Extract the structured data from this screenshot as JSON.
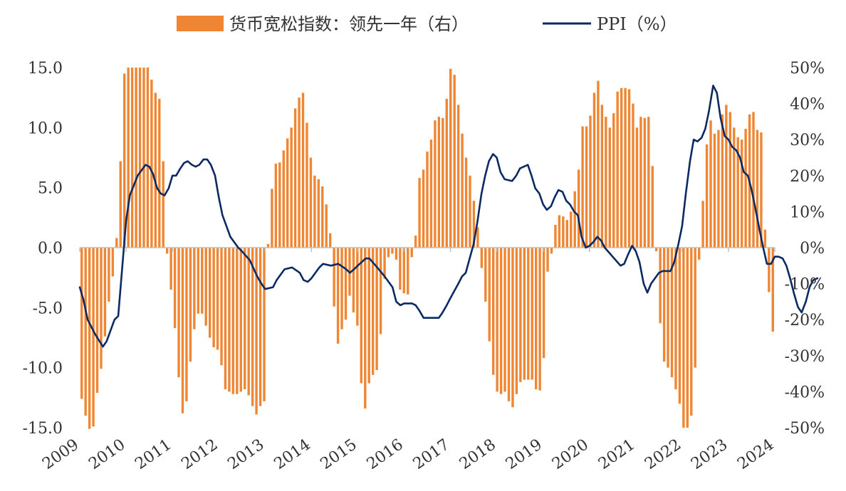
{
  "legend": {
    "bar_label": "货币宽松指数：领先一年（右）",
    "line_label": "PPI（%）"
  },
  "colors": {
    "bar": "#EE8633",
    "line": "#0B2A63",
    "axis": "#BFBFBF"
  },
  "chart_data": {
    "type": "bar+line",
    "x_ticks": [
      "2009",
      "2010",
      "2011",
      "2012",
      "2013",
      "2014",
      "2015",
      "2016",
      "2017",
      "2018",
      "2019",
      "2020",
      "2021",
      "2022",
      "2023",
      "2024"
    ],
    "left_axis": {
      "ticks": [
        "15.0",
        "10.0",
        "5.0",
        "0.0",
        "-5.0",
        "-10.0",
        "-15.0"
      ],
      "ylim": [
        -15,
        15
      ]
    },
    "right_axis": {
      "ticks": [
        "50%",
        "40%",
        "30%",
        "20%",
        "10%",
        "0%",
        "-10%",
        "-20%",
        "-30%",
        "-40%",
        "-50%"
      ],
      "ylim": [
        -50,
        50
      ]
    },
    "x_start": 2009.0,
    "x_end": 2024.0,
    "legend_position": "top-center",
    "grid": false,
    "series": [
      {
        "name": "货币宽松指数：领先一年（右）",
        "kind": "bar",
        "axis": "left",
        "step_months": 1,
        "values": [
          -12.6,
          -14,
          -15.1,
          -14.9,
          -12.1,
          -10.1,
          -7.4,
          -4.5,
          -2.4,
          0.8,
          7.2,
          14.5,
          15.0,
          15.0,
          15.0,
          15.0,
          15.0,
          15.0,
          14.0,
          12.9,
          12.4,
          7.2,
          -0.5,
          -3.5,
          -6.7,
          -10.8,
          -13.8,
          -12.8,
          -9.5,
          -6.8,
          -5.5,
          -5.5,
          -6.5,
          -7.5,
          -8.3,
          -8.5,
          -9.8,
          -11.8,
          -12.0,
          -12.2,
          -12.2,
          -12.0,
          -11.8,
          -12.3,
          -13.2,
          -13.9,
          -13.2,
          -12.8,
          0.3,
          4.9,
          7.0,
          7.1,
          8.1,
          9.1,
          10.0,
          11.6,
          12.5,
          12.9,
          10.4,
          7.5,
          6.0,
          5.7,
          5.1,
          3.6,
          1.2,
          -4.9,
          -8.0,
          -6.8,
          -6.0,
          -4.0,
          -5.4,
          -6.5,
          -11.3,
          -13.4,
          -11.3,
          -10.6,
          -10.2,
          -7.2,
          -2.6,
          -0.8,
          -0.5,
          -1.0,
          -3.5,
          -3.8,
          -3.9,
          -0.8,
          1.0,
          5.8,
          6.5,
          8.0,
          9.0,
          10.6,
          10.9,
          10.8,
          12.4,
          14.9,
          14.4,
          11.9,
          9.5,
          7.5,
          6.0,
          3.9,
          1.7,
          -1.7,
          -4.5,
          -7.8,
          -10.6,
          -12.0,
          -12.2,
          -12.0,
          -12.8,
          -13.3,
          -12.2,
          -11.2,
          -11.0,
          -11.0,
          -11.0,
          -11.8,
          -11.9,
          -9.2,
          -2.0,
          -0.5,
          1.9,
          2.7,
          2.6,
          2.3,
          3.0,
          4.7,
          6.5,
          10.1,
          10.1,
          11.0,
          12.9,
          13.9,
          11.9,
          10.9,
          10.0,
          11.2,
          13.0,
          13.3,
          13.3,
          13.2,
          12.0,
          10.0,
          10.9,
          10.8,
          10.9,
          6.8,
          -0.3,
          -6.3,
          -9.5,
          -10.0,
          -10.8,
          -11.8,
          -13.0,
          -15.0,
          -15.0,
          -14.0,
          -10.0,
          -1.0,
          3.9,
          8.6,
          10.6,
          9.5,
          9.8,
          11.1,
          11.9,
          11.3,
          10.0,
          9.2,
          9.0,
          9.9,
          11.1,
          11.3,
          9.8,
          9.6,
          1.5,
          -3.7,
          -7.0
        ]
      },
      {
        "name": "PPI（%）",
        "kind": "line",
        "axis": "right",
        "points": [
          [
            2009.0,
            -11.0
          ],
          [
            2009.08,
            -14.5
          ],
          [
            2009.17,
            -20.0
          ],
          [
            2009.33,
            -24.0
          ],
          [
            2009.5,
            -27.5
          ],
          [
            2009.58,
            -26.0
          ],
          [
            2009.75,
            -20.0
          ],
          [
            2009.83,
            -19.0
          ],
          [
            2009.92,
            -5.0
          ],
          [
            2010.0,
            7.5
          ],
          [
            2010.08,
            14.5
          ],
          [
            2010.25,
            20.0
          ],
          [
            2010.42,
            23.0
          ],
          [
            2010.5,
            22.5
          ],
          [
            2010.58,
            20.5
          ],
          [
            2010.67,
            16.5
          ],
          [
            2010.75,
            15.0
          ],
          [
            2010.83,
            14.5
          ],
          [
            2010.92,
            16.5
          ],
          [
            2011.0,
            20.0
          ],
          [
            2011.08,
            20.0
          ],
          [
            2011.17,
            22.0
          ],
          [
            2011.25,
            23.5
          ],
          [
            2011.33,
            24.0
          ],
          [
            2011.42,
            23.0
          ],
          [
            2011.5,
            22.5
          ],
          [
            2011.58,
            23.0
          ],
          [
            2011.67,
            24.5
          ],
          [
            2011.75,
            24.5
          ],
          [
            2011.83,
            23.0
          ],
          [
            2011.92,
            20.0
          ],
          [
            2012.0,
            14.0
          ],
          [
            2012.08,
            9.0
          ],
          [
            2012.25,
            3.0
          ],
          [
            2012.42,
            0.0
          ],
          [
            2012.5,
            -1.0
          ],
          [
            2012.67,
            -3.5
          ],
          [
            2012.83,
            -8.0
          ],
          [
            2012.92,
            -10.0
          ],
          [
            2013.0,
            -11.5
          ],
          [
            2013.17,
            -11.0
          ],
          [
            2013.25,
            -9.0
          ],
          [
            2013.42,
            -6.0
          ],
          [
            2013.58,
            -5.5
          ],
          [
            2013.75,
            -7.0
          ],
          [
            2013.83,
            -9.0
          ],
          [
            2013.92,
            -9.5
          ],
          [
            2014.0,
            -8.5
          ],
          [
            2014.17,
            -5.5
          ],
          [
            2014.25,
            -4.5
          ],
          [
            2014.42,
            -5.0
          ],
          [
            2014.58,
            -4.5
          ],
          [
            2014.75,
            -6.0
          ],
          [
            2014.83,
            -7.0
          ],
          [
            2014.92,
            -6.0
          ],
          [
            2015.0,
            -5.0
          ],
          [
            2015.17,
            -3.0
          ],
          [
            2015.25,
            -3.0
          ],
          [
            2015.42,
            -5.5
          ],
          [
            2015.58,
            -8.0
          ],
          [
            2015.75,
            -11.0
          ],
          [
            2015.83,
            -15.0
          ],
          [
            2015.92,
            -16.0
          ],
          [
            2016.0,
            -15.5
          ],
          [
            2016.17,
            -15.5
          ],
          [
            2016.25,
            -16.0
          ],
          [
            2016.33,
            -17.5
          ],
          [
            2016.42,
            -19.5
          ],
          [
            2016.58,
            -19.5
          ],
          [
            2016.75,
            -19.5
          ],
          [
            2016.83,
            -18.0
          ],
          [
            2016.92,
            -16.0
          ],
          [
            2017.0,
            -14.0
          ],
          [
            2017.17,
            -10.0
          ],
          [
            2017.25,
            -8.0
          ],
          [
            2017.33,
            -7.0
          ],
          [
            2017.5,
            1.0
          ],
          [
            2017.58,
            7.0
          ],
          [
            2017.67,
            15.0
          ],
          [
            2017.75,
            20.0
          ],
          [
            2017.83,
            24.0
          ],
          [
            2017.92,
            26.0
          ],
          [
            2018.0,
            25.0
          ],
          [
            2018.08,
            21.0
          ],
          [
            2018.17,
            19.0
          ],
          [
            2018.33,
            18.5
          ],
          [
            2018.42,
            20.0
          ],
          [
            2018.5,
            22.0
          ],
          [
            2018.67,
            23.0
          ],
          [
            2018.75,
            20.0
          ],
          [
            2018.83,
            16.5
          ],
          [
            2018.92,
            15.0
          ],
          [
            2019.0,
            12.0
          ],
          [
            2019.08,
            10.5
          ],
          [
            2019.17,
            11.5
          ],
          [
            2019.25,
            14.0
          ],
          [
            2019.33,
            16.0
          ],
          [
            2019.42,
            15.5
          ],
          [
            2019.5,
            13.0
          ],
          [
            2019.58,
            12.0
          ],
          [
            2019.67,
            10.0
          ],
          [
            2019.75,
            9.0
          ],
          [
            2019.83,
            3.0
          ],
          [
            2019.92,
            0.0
          ],
          [
            2020.0,
            0.5
          ],
          [
            2020.08,
            1.5
          ],
          [
            2020.17,
            3.0
          ],
          [
            2020.25,
            2.0
          ],
          [
            2020.33,
            0.0
          ],
          [
            2020.5,
            -2.5
          ],
          [
            2020.67,
            -5.0
          ],
          [
            2020.75,
            -4.5
          ],
          [
            2020.83,
            -2.0
          ],
          [
            2020.92,
            0.5
          ],
          [
            2021.0,
            -1.0
          ],
          [
            2021.08,
            -4.0
          ],
          [
            2021.17,
            -10.0
          ],
          [
            2021.25,
            -12.5
          ],
          [
            2021.33,
            -10.0
          ],
          [
            2021.5,
            -7.0
          ],
          [
            2021.58,
            -6.5
          ],
          [
            2021.75,
            -6.5
          ],
          [
            2021.83,
            -4.0
          ],
          [
            2021.92,
            1.0
          ],
          [
            2022.0,
            6.0
          ],
          [
            2022.08,
            15.0
          ],
          [
            2022.17,
            24.0
          ],
          [
            2022.25,
            30.0
          ],
          [
            2022.33,
            29.5
          ],
          [
            2022.42,
            30.5
          ],
          [
            2022.5,
            33.0
          ],
          [
            2022.58,
            38.0
          ],
          [
            2022.67,
            45.0
          ],
          [
            2022.75,
            43.0
          ],
          [
            2022.83,
            36.0
          ],
          [
            2022.92,
            31.0
          ],
          [
            2023.0,
            30.0
          ],
          [
            2023.08,
            28.0
          ],
          [
            2023.17,
            27.0
          ],
          [
            2023.25,
            25.0
          ],
          [
            2023.33,
            21.0
          ],
          [
            2023.42,
            20.0
          ],
          [
            2023.5,
            16.0
          ],
          [
            2023.58,
            11.0
          ],
          [
            2023.67,
            5.0
          ],
          [
            2023.75,
            0.0
          ],
          [
            2023.83,
            -4.5
          ],
          [
            2023.92,
            -4.5
          ],
          [
            2024.0,
            -2.5
          ],
          [
            2024.08,
            -2.5
          ],
          [
            2024.17,
            -3.0
          ],
          [
            2024.25,
            -5.0
          ],
          [
            2024.33,
            -8.5
          ],
          [
            2024.42,
            -13.0
          ],
          [
            2024.5,
            -16.5
          ],
          [
            2024.58,
            -18.0
          ],
          [
            2024.67,
            -15.0
          ],
          [
            2024.75,
            -11.0
          ],
          [
            2024.83,
            -9.0
          ],
          [
            2024.92,
            -8.5
          ]
        ]
      }
    ]
  }
}
